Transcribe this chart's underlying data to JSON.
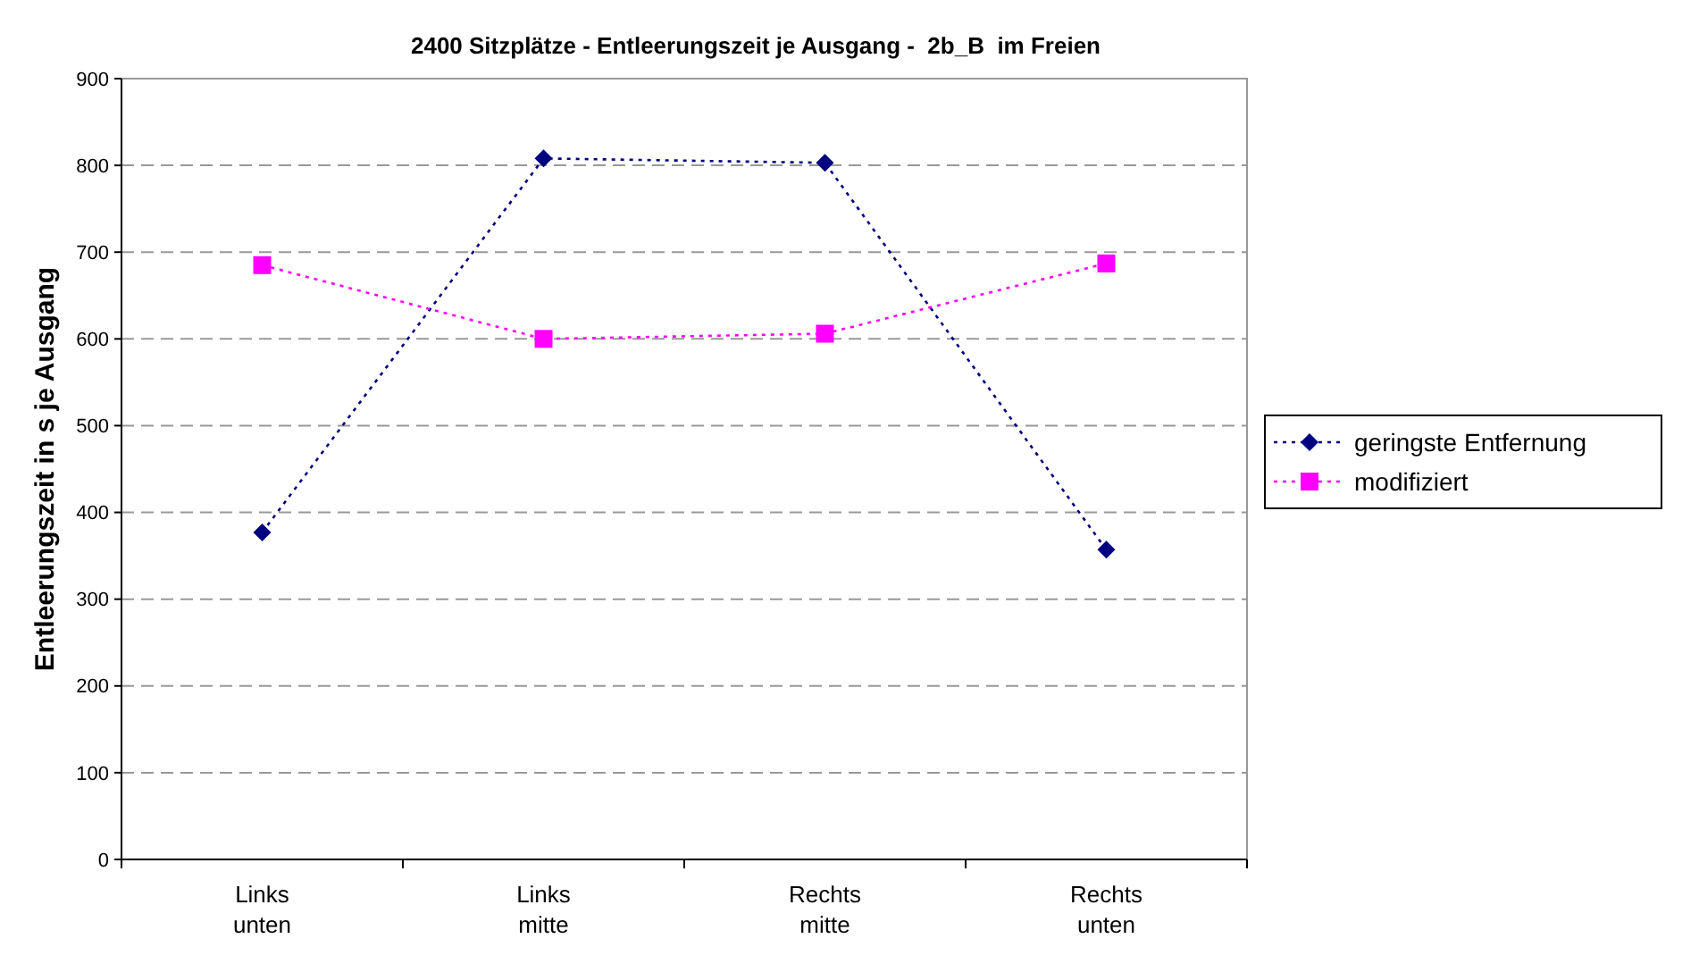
{
  "chart_data": {
    "type": "line",
    "title": "2400 Sitzplätze - Entleerungszeit je Ausgang -  2b_B  im Freien",
    "ylabel": "Entleerungszeit in s je Ausgang",
    "categories": [
      "Links unten",
      "Links mitte",
      "Rechts mitte",
      "Rechts unten"
    ],
    "ylim": [
      0,
      900
    ],
    "yticks": [
      0,
      100,
      200,
      300,
      400,
      500,
      600,
      700,
      800,
      900
    ],
    "grid": "y",
    "legend": "right",
    "line_style": "dotted",
    "series": [
      {
        "name": "geringste Entfernung",
        "color": "#000080",
        "marker": "diamond",
        "values": [
          377,
          808,
          803,
          357
        ]
      },
      {
        "name": "modifiziert",
        "color": "#ff00ff",
        "marker": "square",
        "values": [
          685,
          600,
          606,
          687
        ]
      }
    ]
  }
}
